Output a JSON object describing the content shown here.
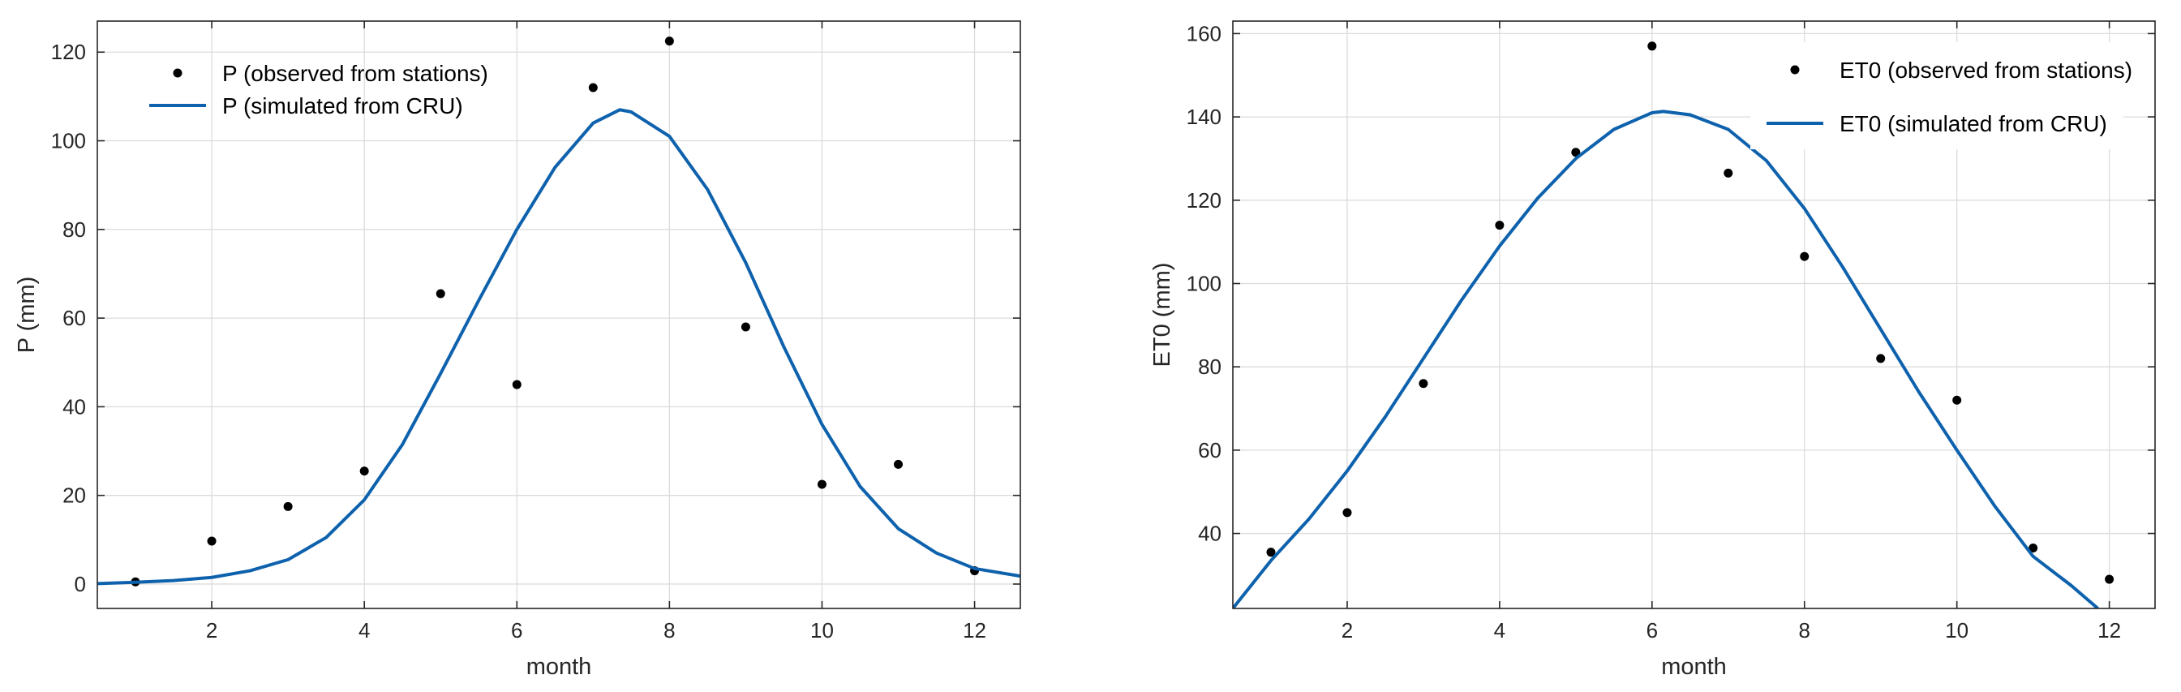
{
  "colors": {
    "observed": "#000000",
    "simulated": "#0e62ad",
    "grid": "#dcdcdc",
    "axis": "#262626"
  },
  "chart_data": [
    {
      "type": "line",
      "xlabel": "month",
      "ylabel": "P (mm)",
      "xlim": [
        0.5,
        12.6
      ],
      "ylim": [
        -5.5,
        127
      ],
      "xticks": [
        2,
        4,
        6,
        8,
        10,
        12
      ],
      "yticks": [
        0,
        20,
        40,
        60,
        80,
        100,
        120
      ],
      "grid": true,
      "legend_position": "top-left",
      "series": [
        {
          "name": "P (observed from stations)",
          "style": "markers",
          "x": [
            1,
            2,
            3,
            4,
            5,
            6,
            7,
            8,
            9,
            10,
            11,
            12
          ],
          "y": [
            0.5,
            9.7,
            17.5,
            25.5,
            65.5,
            45,
            112,
            122.5,
            58,
            22.5,
            27,
            3
          ]
        },
        {
          "name": "P (simulated from CRU)",
          "style": "line",
          "x": [
            0.5,
            1,
            1.5,
            2,
            2.5,
            3,
            3.5,
            4,
            4.5,
            5,
            5.5,
            6,
            6.5,
            7,
            7.35,
            7.5,
            8,
            8.5,
            9,
            9.5,
            10,
            10.5,
            11,
            11.5,
            12,
            12.6
          ],
          "y": [
            0.1,
            0.4,
            0.8,
            1.5,
            3,
            5.5,
            10.5,
            19,
            31.5,
            47.5,
            64,
            80,
            94,
            104,
            107,
            106.5,
            101,
            89,
            72.5,
            53.5,
            36,
            22,
            12.5,
            7,
            3.5,
            1.8
          ]
        }
      ]
    },
    {
      "type": "line",
      "xlabel": "month",
      "ylabel": "ET0 (mm)",
      "xlim": [
        0.5,
        12.6
      ],
      "ylim": [
        22,
        163
      ],
      "xticks": [
        2,
        4,
        6,
        8,
        10,
        12
      ],
      "yticks": [
        40,
        60,
        80,
        100,
        120,
        140,
        160
      ],
      "grid": true,
      "legend_position": "top-right",
      "series": [
        {
          "name": "ET0 (observed from stations)",
          "style": "markers",
          "x": [
            1,
            2,
            3,
            4,
            5,
            6,
            7,
            8,
            9,
            10,
            11,
            12
          ],
          "y": [
            35.5,
            45,
            76,
            114,
            131.5,
            157,
            126.5,
            106.5,
            82,
            72,
            36.5,
            29
          ]
        },
        {
          "name": "ET0 (simulated from CRU)",
          "style": "line",
          "x": [
            0.5,
            1,
            1.5,
            2,
            2.5,
            3,
            3.5,
            4,
            4.5,
            5,
            5.5,
            6,
            6.15,
            6.5,
            7,
            7.5,
            8,
            8.5,
            9,
            9.5,
            10,
            10.5,
            11,
            11.5,
            11.85
          ],
          "y": [
            22,
            33.5,
            43.5,
            55,
            68,
            82,
            96,
            109,
            120.5,
            130,
            137,
            141,
            141.3,
            140.5,
            137,
            129.5,
            118,
            104,
            89,
            74,
            60,
            46.5,
            34.5,
            27.5,
            22
          ]
        }
      ]
    }
  ]
}
